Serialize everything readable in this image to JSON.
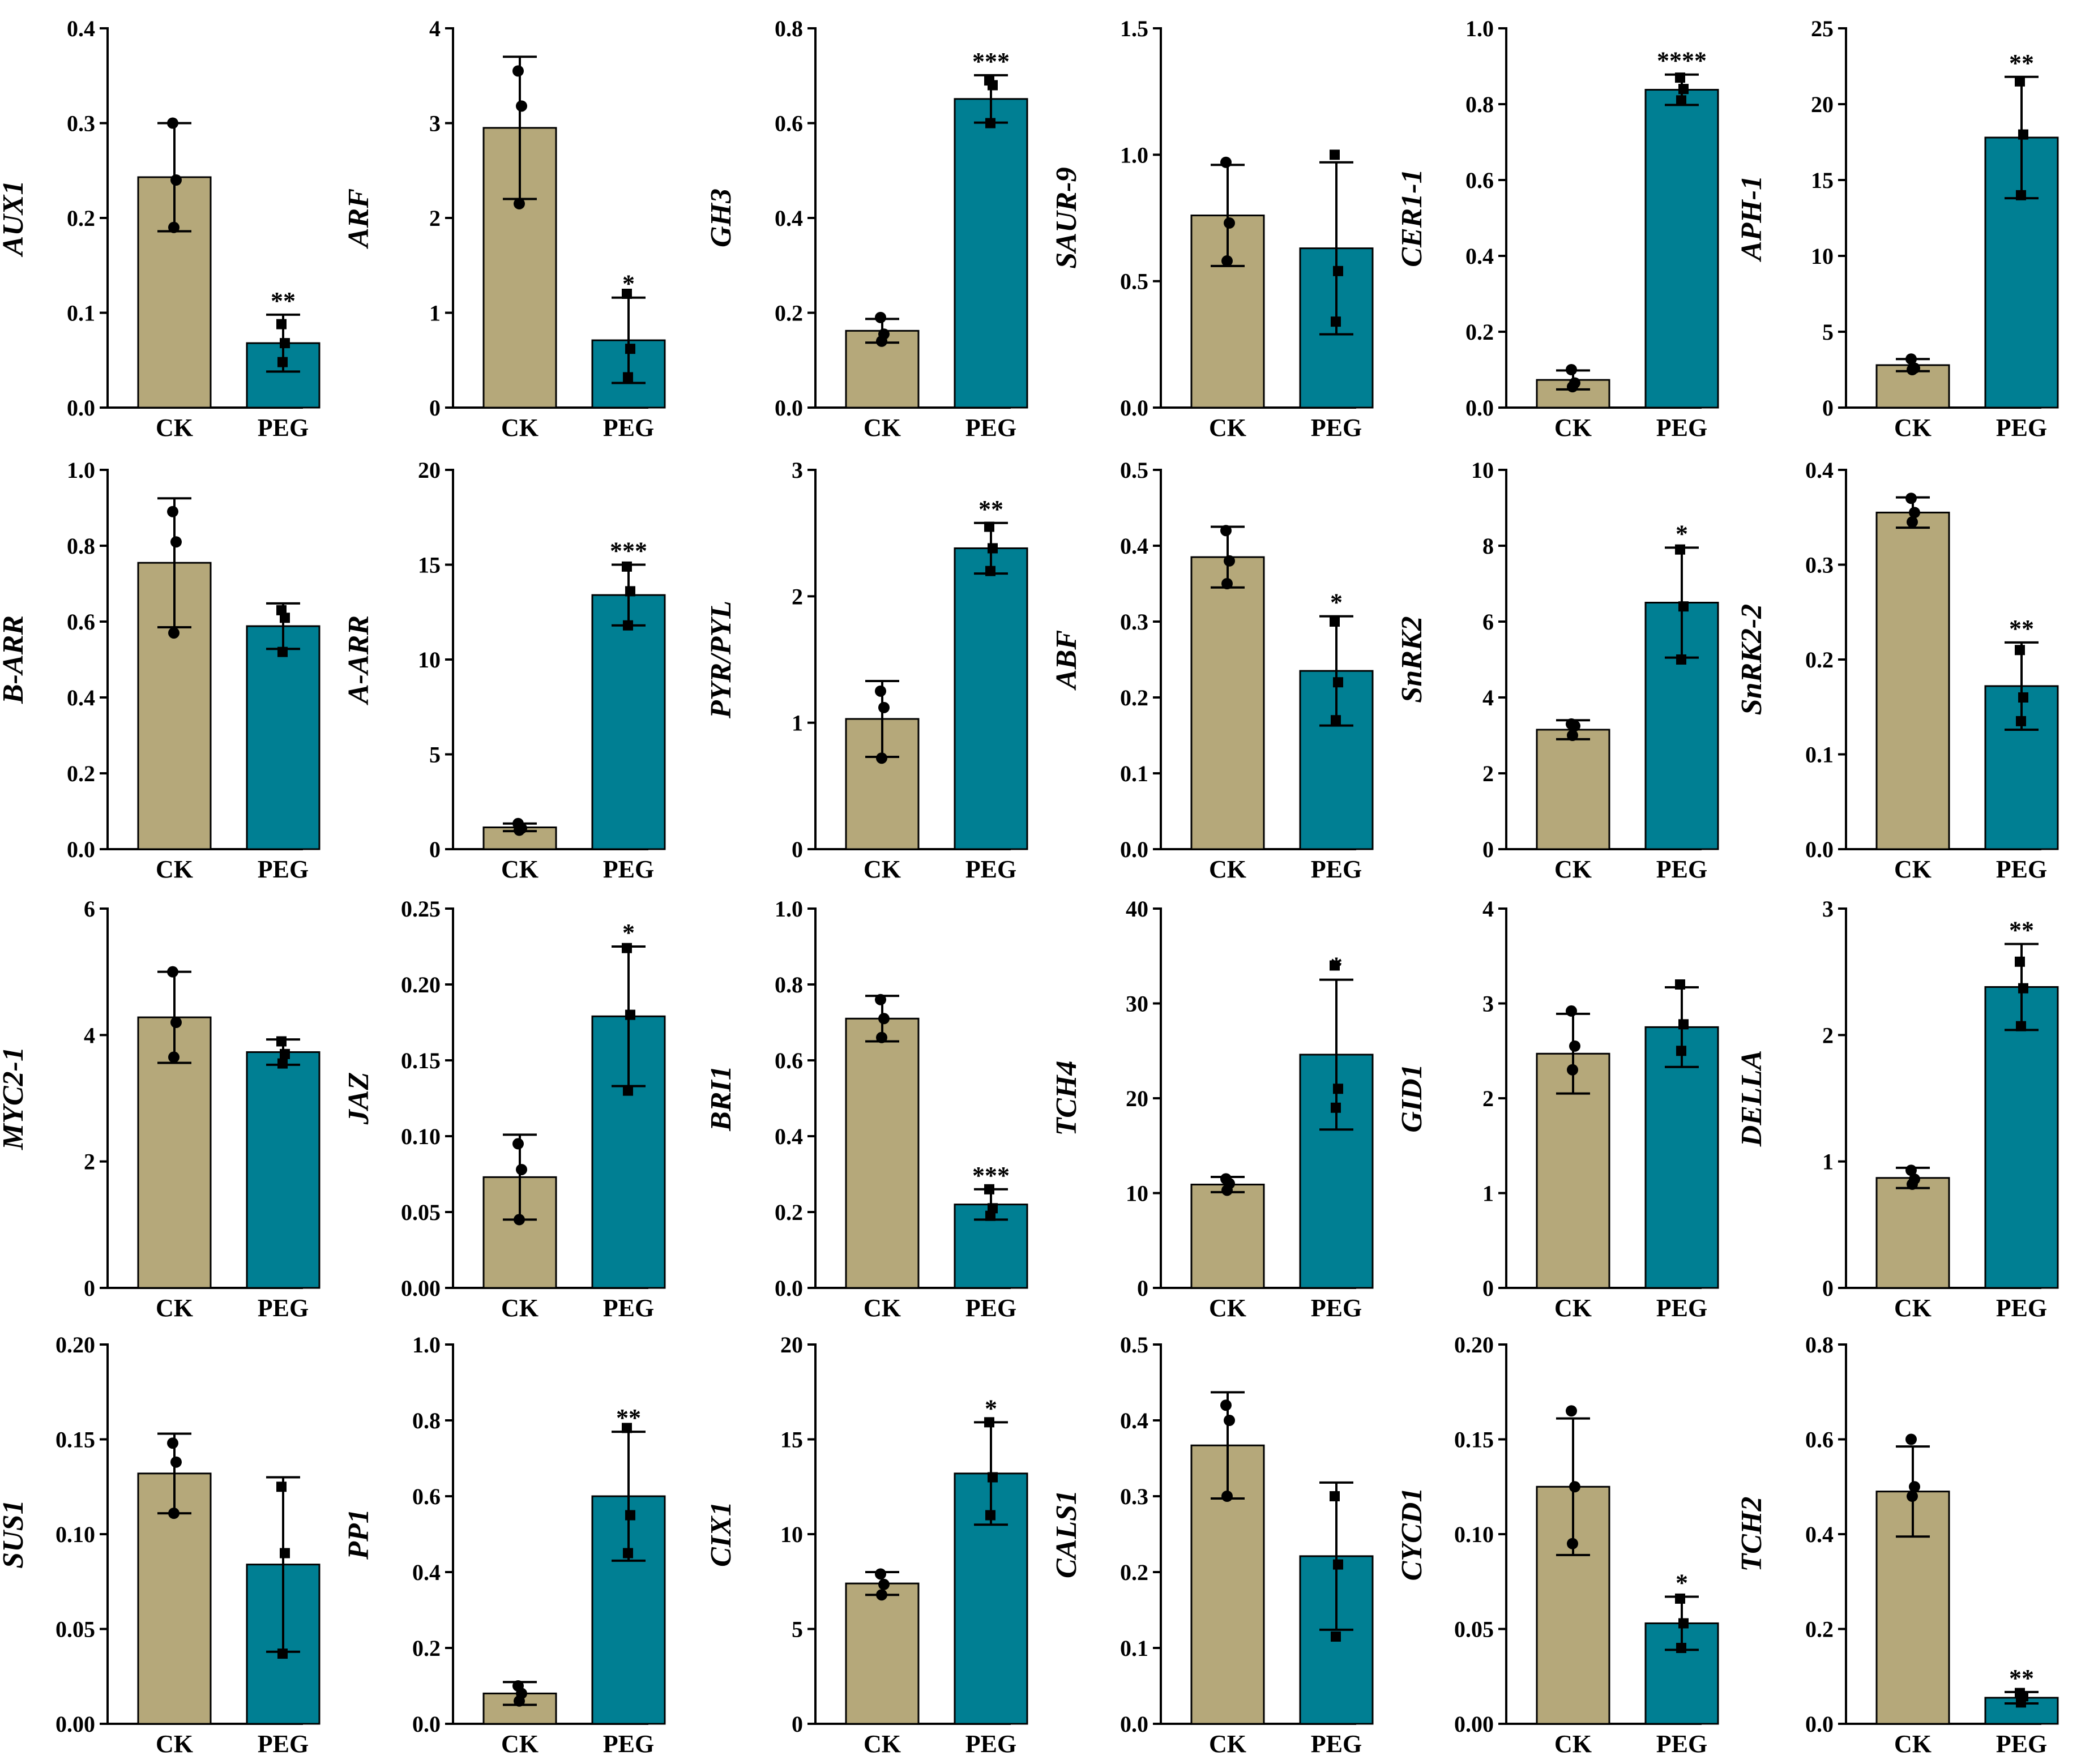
{
  "colors": {
    "ck": "#b5a87a",
    "peg": "#007f93",
    "axis": "#000000"
  },
  "chart_data": [
    {
      "type": "bar",
      "gene": "AUX1",
      "ylim": [
        0,
        0.4
      ],
      "yticks": [
        "0.0",
        "0.1",
        "0.2",
        "0.3",
        "0.4"
      ],
      "categories": [
        "CK",
        "PEG"
      ],
      "values": [
        0.243,
        0.068
      ],
      "errors": [
        0.057,
        0.03
      ],
      "points": [
        [
          0.3,
          0.24,
          0.19
        ],
        [
          0.088,
          0.068,
          0.048
        ]
      ],
      "sig": [
        "",
        "**"
      ]
    },
    {
      "type": "bar",
      "gene": "ARF",
      "ylim": [
        0,
        4
      ],
      "yticks": [
        "0",
        "1",
        "2",
        "3",
        "4"
      ],
      "categories": [
        "CK",
        "PEG"
      ],
      "values": [
        2.95,
        0.71
      ],
      "errors": [
        0.75,
        0.45
      ],
      "points": [
        [
          3.55,
          3.18,
          2.15
        ],
        [
          1.2,
          0.62,
          0.32
        ]
      ],
      "sig": [
        "",
        "*"
      ]
    },
    {
      "type": "bar",
      "gene": "GH3",
      "ylim": [
        0,
        0.8
      ],
      "yticks": [
        "0.0",
        "0.2",
        "0.4",
        "0.6",
        "0.8"
      ],
      "categories": [
        "CK",
        "PEG"
      ],
      "values": [
        0.162,
        0.651
      ],
      "errors": [
        0.025,
        0.05
      ],
      "points": [
        [
          0.19,
          0.155,
          0.14
        ],
        [
          0.69,
          0.68,
          0.6
        ]
      ],
      "sig": [
        "",
        "***"
      ]
    },
    {
      "type": "bar",
      "gene": "SAUR-9",
      "ylim": [
        0,
        1.5
      ],
      "yticks": [
        "0.0",
        "0.5",
        "1.0",
        "1.5"
      ],
      "categories": [
        "CK",
        "PEG"
      ],
      "values": [
        0.76,
        0.63
      ],
      "errors": [
        0.2,
        0.34
      ],
      "points": [
        [
          0.97,
          0.73,
          0.58
        ],
        [
          1.0,
          0.54,
          0.34
        ]
      ],
      "sig": [
        "",
        ""
      ]
    },
    {
      "type": "bar",
      "gene": "CER1-1",
      "ylim": [
        0,
        1.0
      ],
      "yticks": [
        "0.0",
        "0.2",
        "0.4",
        "0.6",
        "0.8",
        "1.0"
      ],
      "categories": [
        "CK",
        "PEG"
      ],
      "values": [
        0.073,
        0.838
      ],
      "errors": [
        0.025,
        0.04
      ],
      "points": [
        [
          0.1,
          0.065,
          0.055
        ],
        [
          0.87,
          0.84,
          0.81
        ]
      ],
      "sig": [
        "",
        "****"
      ]
    },
    {
      "type": "bar",
      "gene": "APH-1",
      "ylim": [
        0,
        25
      ],
      "yticks": [
        "0",
        "5",
        "10",
        "15",
        "20",
        "25"
      ],
      "categories": [
        "CK",
        "PEG"
      ],
      "values": [
        2.8,
        17.8
      ],
      "errors": [
        0.4,
        4.0
      ],
      "points": [
        [
          3.2,
          2.6,
          2.5
        ],
        [
          21.5,
          18.0,
          14.0
        ]
      ],
      "sig": [
        "",
        "**"
      ]
    },
    {
      "type": "bar",
      "gene": "B-ARR",
      "ylim": [
        0,
        1.0
      ],
      "yticks": [
        "0.0",
        "0.2",
        "0.4",
        "0.6",
        "0.8",
        "1.0"
      ],
      "categories": [
        "CK",
        "PEG"
      ],
      "values": [
        0.755,
        0.588
      ],
      "errors": [
        0.17,
        0.06
      ],
      "points": [
        [
          0.89,
          0.81,
          0.57
        ],
        [
          0.63,
          0.61,
          0.52
        ]
      ],
      "sig": [
        "",
        ""
      ]
    },
    {
      "type": "bar",
      "gene": "A-ARR",
      "ylim": [
        0,
        20
      ],
      "yticks": [
        "0",
        "5",
        "10",
        "15",
        "20"
      ],
      "categories": [
        "CK",
        "PEG"
      ],
      "values": [
        1.15,
        13.4
      ],
      "errors": [
        0.2,
        1.6
      ],
      "points": [
        [
          1.35,
          1.1,
          1.0
        ],
        [
          14.9,
          13.6,
          11.8
        ]
      ],
      "sig": [
        "",
        "***"
      ]
    },
    {
      "type": "bar",
      "gene": "PYR/PYL",
      "ylim": [
        0,
        3
      ],
      "yticks": [
        "0",
        "1",
        "2",
        "3"
      ],
      "categories": [
        "CK",
        "PEG"
      ],
      "values": [
        1.03,
        2.38
      ],
      "errors": [
        0.3,
        0.2
      ],
      "points": [
        [
          1.25,
          1.12,
          0.72
        ],
        [
          2.55,
          2.38,
          2.2
        ]
      ],
      "sig": [
        "",
        "**"
      ]
    },
    {
      "type": "bar",
      "gene": "ABF",
      "ylim": [
        0,
        0.5
      ],
      "yticks": [
        "0.0",
        "0.1",
        "0.2",
        "0.3",
        "0.4",
        "0.5"
      ],
      "categories": [
        "CK",
        "PEG"
      ],
      "values": [
        0.385,
        0.235
      ],
      "errors": [
        0.04,
        0.072
      ],
      "points": [
        [
          0.42,
          0.38,
          0.35
        ],
        [
          0.3,
          0.22,
          0.17
        ]
      ],
      "sig": [
        "",
        "*"
      ]
    },
    {
      "type": "bar",
      "gene": "SnRK2",
      "ylim": [
        0,
        10
      ],
      "yticks": [
        "0",
        "2",
        "4",
        "6",
        "8",
        "10"
      ],
      "categories": [
        "CK",
        "PEG"
      ],
      "values": [
        3.15,
        6.5
      ],
      "errors": [
        0.25,
        1.45
      ],
      "points": [
        [
          3.3,
          3.25,
          3.0
        ],
        [
          7.9,
          6.4,
          5.0
        ]
      ],
      "sig": [
        "",
        "*"
      ]
    },
    {
      "type": "bar",
      "gene": "SnRK2-2",
      "ylim": [
        0,
        0.4
      ],
      "yticks": [
        "0.0",
        "0.1",
        "0.2",
        "0.3",
        "0.4"
      ],
      "categories": [
        "CK",
        "PEG"
      ],
      "values": [
        0.355,
        0.172
      ],
      "errors": [
        0.016,
        0.046
      ],
      "points": [
        [
          0.37,
          0.355,
          0.345
        ],
        [
          0.21,
          0.16,
          0.135
        ]
      ],
      "sig": [
        "",
        "**"
      ]
    },
    {
      "type": "bar",
      "gene": "MYC2-1",
      "ylim": [
        0,
        6
      ],
      "yticks": [
        "0",
        "2",
        "4",
        "6"
      ],
      "categories": [
        "CK",
        "PEG"
      ],
      "values": [
        4.28,
        3.73
      ],
      "errors": [
        0.72,
        0.2
      ],
      "points": [
        [
          5.0,
          4.2,
          3.65
        ],
        [
          3.9,
          3.7,
          3.55
        ]
      ],
      "sig": [
        "",
        ""
      ]
    },
    {
      "type": "bar",
      "gene": "JAZ",
      "ylim": [
        0,
        0.25
      ],
      "yticks": [
        "0.00",
        "0.05",
        "0.10",
        "0.15",
        "0.20",
        "0.25"
      ],
      "categories": [
        "CK",
        "PEG"
      ],
      "values": [
        0.073,
        0.179
      ],
      "errors": [
        0.028,
        0.046
      ],
      "points": [
        [
          0.095,
          0.078,
          0.045
        ],
        [
          0.224,
          0.18,
          0.13
        ]
      ],
      "sig": [
        "",
        "*"
      ]
    },
    {
      "type": "bar",
      "gene": "BRI1",
      "ylim": [
        0,
        1.0
      ],
      "yticks": [
        "0.0",
        "0.2",
        "0.4",
        "0.6",
        "0.8",
        "1.0"
      ],
      "categories": [
        "CK",
        "PEG"
      ],
      "values": [
        0.71,
        0.22
      ],
      "errors": [
        0.06,
        0.04
      ],
      "points": [
        [
          0.76,
          0.71,
          0.66
        ],
        [
          0.26,
          0.21,
          0.19
        ]
      ],
      "sig": [
        "",
        "***"
      ]
    },
    {
      "type": "bar",
      "gene": "TCH4",
      "ylim": [
        0,
        40
      ],
      "yticks": [
        "0",
        "10",
        "20",
        "30",
        "40"
      ],
      "categories": [
        "CK",
        "PEG"
      ],
      "values": [
        10.9,
        24.6
      ],
      "errors": [
        0.8,
        7.9
      ],
      "points": [
        [
          11.5,
          11.0,
          10.3
        ],
        [
          34.0,
          21.0,
          19.0
        ]
      ],
      "sig": [
        "",
        "*"
      ]
    },
    {
      "type": "bar",
      "gene": "GID1",
      "ylim": [
        0,
        4
      ],
      "yticks": [
        "0",
        "1",
        "2",
        "3",
        "4"
      ],
      "categories": [
        "CK",
        "PEG"
      ],
      "values": [
        2.47,
        2.75
      ],
      "errors": [
        0.42,
        0.42
      ],
      "points": [
        [
          2.92,
          2.55,
          2.3
        ],
        [
          3.2,
          2.78,
          2.5
        ]
      ],
      "sig": [
        "",
        ""
      ]
    },
    {
      "type": "bar",
      "gene": "DELLA",
      "ylim": [
        0,
        3
      ],
      "yticks": [
        "0",
        "1",
        "2",
        "3"
      ],
      "categories": [
        "CK",
        "PEG"
      ],
      "values": [
        0.87,
        2.38
      ],
      "errors": [
        0.08,
        0.34
      ],
      "points": [
        [
          0.93,
          0.86,
          0.82
        ],
        [
          2.58,
          2.37,
          2.07
        ]
      ],
      "sig": [
        "",
        "**"
      ]
    },
    {
      "type": "bar",
      "gene": "SUS1",
      "ylim": [
        0,
        0.2
      ],
      "yticks": [
        "0.00",
        "0.05",
        "0.10",
        "0.15",
        "0.20"
      ],
      "categories": [
        "CK",
        "PEG"
      ],
      "values": [
        0.132,
        0.084
      ],
      "errors": [
        0.021,
        0.046
      ],
      "points": [
        [
          0.148,
          0.138,
          0.111
        ],
        [
          0.125,
          0.09,
          0.037
        ]
      ],
      "sig": [
        "",
        ""
      ]
    },
    {
      "type": "bar",
      "gene": "PP1",
      "ylim": [
        0,
        1.0
      ],
      "yticks": [
        "0.0",
        "0.2",
        "0.4",
        "0.6",
        "0.8",
        "1.0"
      ],
      "categories": [
        "CK",
        "PEG"
      ],
      "values": [
        0.08,
        0.6
      ],
      "errors": [
        0.03,
        0.17
      ],
      "points": [
        [
          0.1,
          0.08,
          0.06
        ],
        [
          0.78,
          0.55,
          0.45
        ]
      ],
      "sig": [
        "",
        "**"
      ]
    },
    {
      "type": "bar",
      "gene": "CIX1",
      "ylim": [
        0,
        20
      ],
      "yticks": [
        "0",
        "5",
        "10",
        "15",
        "20"
      ],
      "categories": [
        "CK",
        "PEG"
      ],
      "values": [
        7.4,
        13.2
      ],
      "errors": [
        0.6,
        2.7
      ],
      "points": [
        [
          7.9,
          7.35,
          6.8
        ],
        [
          15.9,
          13.0,
          11.0
        ]
      ],
      "sig": [
        "",
        "*"
      ]
    },
    {
      "type": "bar",
      "gene": "CALS1",
      "ylim": [
        0,
        0.5
      ],
      "yticks": [
        "0.0",
        "0.1",
        "0.2",
        "0.3",
        "0.4",
        "0.5"
      ],
      "categories": [
        "CK",
        "PEG"
      ],
      "values": [
        0.367,
        0.221
      ],
      "errors": [
        0.07,
        0.097
      ],
      "points": [
        [
          0.42,
          0.4,
          0.3
        ],
        [
          0.3,
          0.21,
          0.115
        ]
      ],
      "sig": [
        "",
        ""
      ]
    },
    {
      "type": "bar",
      "gene": "CYCD1",
      "ylim": [
        0,
        0.2
      ],
      "yticks": [
        "0.00",
        "0.05",
        "0.10",
        "0.15",
        "0.20"
      ],
      "categories": [
        "CK",
        "PEG"
      ],
      "values": [
        0.125,
        0.053
      ],
      "errors": [
        0.036,
        0.014
      ],
      "points": [
        [
          0.165,
          0.125,
          0.095
        ],
        [
          0.066,
          0.053,
          0.04
        ]
      ],
      "sig": [
        "",
        "*"
      ]
    },
    {
      "type": "bar",
      "gene": "TCH2",
      "ylim": [
        0,
        0.8
      ],
      "yticks": [
        "0.0",
        "0.2",
        "0.4",
        "0.6",
        "0.8"
      ],
      "categories": [
        "CK",
        "PEG"
      ],
      "values": [
        0.49,
        0.055
      ],
      "errors": [
        0.095,
        0.012
      ],
      "points": [
        [
          0.6,
          0.5,
          0.48
        ],
        [
          0.065,
          0.058,
          0.045
        ]
      ],
      "sig": [
        "",
        "**"
      ]
    }
  ]
}
